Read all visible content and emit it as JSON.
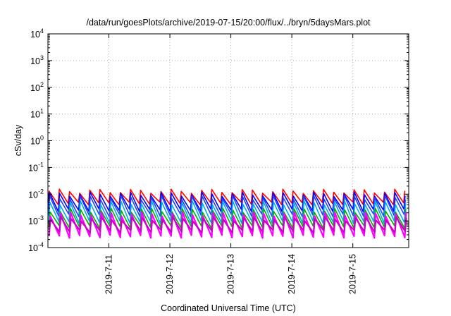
{
  "chart_data": {
    "type": "line",
    "title": "/data/run/goesPlots/archive/2019-07-15/20:00/flux/../bryn/5daysMars.plot",
    "xlabel": "Coordinated Universal Time (UTC)",
    "ylabel": "cSv/day",
    "x_start": "2019-07-10",
    "x_end": "2019-07-15 22:00",
    "x_tick_labels": [
      "2019-7-11",
      "2019-7-12",
      "2019-7-13",
      "2019-7-14",
      "2019-7-15"
    ],
    "y_scale": "log",
    "y_tick_labels": [
      {
        "base": "10",
        "exp": "4"
      },
      {
        "base": "10",
        "exp": "3"
      },
      {
        "base": "10",
        "exp": "2"
      },
      {
        "base": "10",
        "exp": "1"
      },
      {
        "base": "10",
        "exp": "0"
      },
      {
        "base": "10",
        "exp": "-1"
      },
      {
        "base": "10",
        "exp": "-2"
      },
      {
        "base": "10",
        "exp": "-3"
      },
      {
        "base": "10",
        "exp": "-4"
      }
    ],
    "ylim": [
      0.0001,
      10000
    ],
    "grid": true,
    "legend": "none",
    "cycles_per_day": 6,
    "series": [
      {
        "color": "#ff0000",
        "peak": 0.013,
        "trough": 0.0045
      },
      {
        "color": "#0000ff",
        "peak": 0.01,
        "trough": 0.0025
      },
      {
        "color": "#2040ff",
        "peak": 0.0075,
        "trough": 0.0016
      },
      {
        "color": "#00aaee",
        "peak": 0.0048,
        "trough": 0.0009
      },
      {
        "color": "#00b000",
        "peak": 0.0025,
        "trough": 0.0006
      },
      {
        "color": "#ff00ff",
        "peak": 0.0018,
        "trough": 0.00026
      },
      {
        "color": "#cc00cc",
        "peak": 0.0012,
        "trough": 0.0004
      }
    ]
  }
}
